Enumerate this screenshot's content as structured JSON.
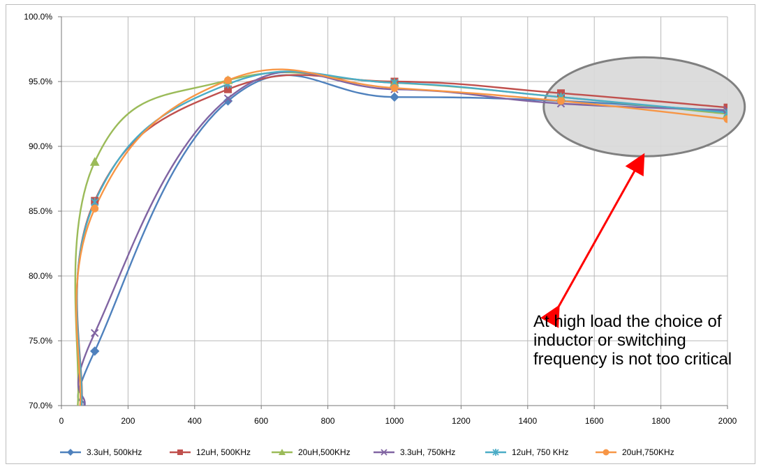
{
  "chart_data": {
    "type": "line",
    "title": "",
    "xlabel": "",
    "ylabel": "",
    "xlim": [
      0,
      2000
    ],
    "ylim": [
      70,
      100
    ],
    "xticks": [
      0,
      200,
      400,
      600,
      800,
      1000,
      1200,
      1400,
      1600,
      1800,
      2000
    ],
    "yticks": [
      70,
      75,
      80,
      85,
      90,
      95,
      100
    ],
    "xtick_labels": [
      "0",
      "200",
      "400",
      "600",
      "800",
      "1000",
      "1200",
      "1400",
      "1600",
      "1800",
      "2000"
    ],
    "ytick_labels": [
      "70.0%",
      "75.0%",
      "80.0%",
      "85.0%",
      "90.0%",
      "95.0%",
      "100.0%"
    ],
    "grid": true,
    "legend_position": "bottom",
    "series": [
      {
        "name": "3.3uH, 500kHz",
        "color": "#4F81BD",
        "marker": "diamond",
        "x": [
          100,
          500,
          1000,
          1500,
          2000
        ],
        "y": [
          74.2,
          93.5,
          93.8,
          93.5,
          92.7
        ]
      },
      {
        "name": "12uH, 500KHz",
        "color": "#C0504D",
        "marker": "square",
        "x": [
          100,
          500,
          1000,
          1500,
          2000
        ],
        "y": [
          85.8,
          94.4,
          95.0,
          94.1,
          93.0
        ]
      },
      {
        "name": "20uH,500KHz",
        "color": "#9BBB59",
        "marker": "triangle",
        "x": [
          100,
          500,
          1000,
          1500,
          2000
        ],
        "y": [
          88.8,
          95.1,
          94.9,
          93.8,
          92.5
        ]
      },
      {
        "name": "3.3uH, 750kHz",
        "color": "#8064A2",
        "marker": "x",
        "x": [
          100,
          500,
          1000,
          1500,
          2000
        ],
        "y": [
          75.6,
          93.7,
          94.4,
          93.3,
          92.8
        ]
      },
      {
        "name": "12uH, 750 KHz",
        "color": "#4BACC6",
        "marker": "star",
        "x": [
          100,
          500,
          1000,
          1500,
          2000
        ],
        "y": [
          85.7,
          94.8,
          94.9,
          93.8,
          92.6
        ]
      },
      {
        "name": "20uH,750KHz",
        "color": "#F79646",
        "marker": "circle",
        "x": [
          100,
          500,
          1000,
          1500,
          2000
        ],
        "y": [
          85.2,
          95.1,
          94.5,
          93.5,
          92.1
        ]
      }
    ],
    "annotation": {
      "lines": [
        "At high load the choice of",
        "inductor or switching",
        "frequency is not too critical"
      ],
      "arrow_color": "#FF0000",
      "highlight_color": "#D9D9D9",
      "highlight_border": "#808080"
    }
  }
}
